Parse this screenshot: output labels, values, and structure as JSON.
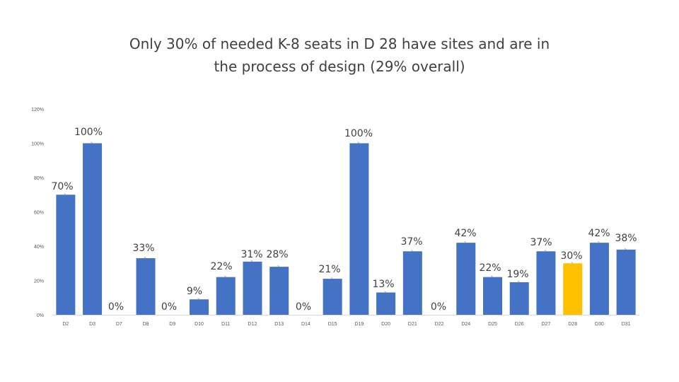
{
  "title_lines": [
    "Only 30% of needed K-8 seats in D 28 have sites and are in",
    "the process of design  (29% overall)"
  ],
  "colors": {
    "bar": "#4472C4",
    "highlight": "#FFC000",
    "axis": "#D9D9D9"
  },
  "chart_data": {
    "type": "bar",
    "title": "Only 30% of needed K-8 seats in D 28 have sites and are in the process of design  (29% overall)",
    "xlabel": "",
    "ylabel": "",
    "ylim": [
      0,
      120
    ],
    "yticks": [
      "0%",
      "20%",
      "40%",
      "60%",
      "80%",
      "100%",
      "120%"
    ],
    "yticks_values": [
      0,
      20,
      40,
      60,
      80,
      100,
      120
    ],
    "grid": false,
    "legend": "none",
    "highlight_category": "D28",
    "categories": [
      "D2",
      "D3",
      "D7",
      "D8",
      "D9",
      "D10",
      "D11",
      "D12",
      "D13",
      "D14",
      "D15",
      "D19",
      "D20",
      "D21",
      "D22",
      "D24",
      "D25",
      "D26",
      "D27",
      "D28",
      "D30",
      "D31"
    ],
    "values": [
      70,
      100,
      0,
      33,
      0,
      9,
      22,
      31,
      28,
      0,
      21,
      100,
      13,
      37,
      0,
      42,
      22,
      19,
      37,
      30,
      42,
      38
    ],
    "data_labels": [
      "70%",
      "100%",
      "0%",
      "33%",
      "0%",
      "9%",
      "22%",
      "31%",
      "28%",
      "0%",
      "21%",
      "100%",
      "13%",
      "37%",
      "0%",
      "42%",
      "22%",
      "19%",
      "37%",
      "30%",
      "42%",
      "38%"
    ]
  }
}
